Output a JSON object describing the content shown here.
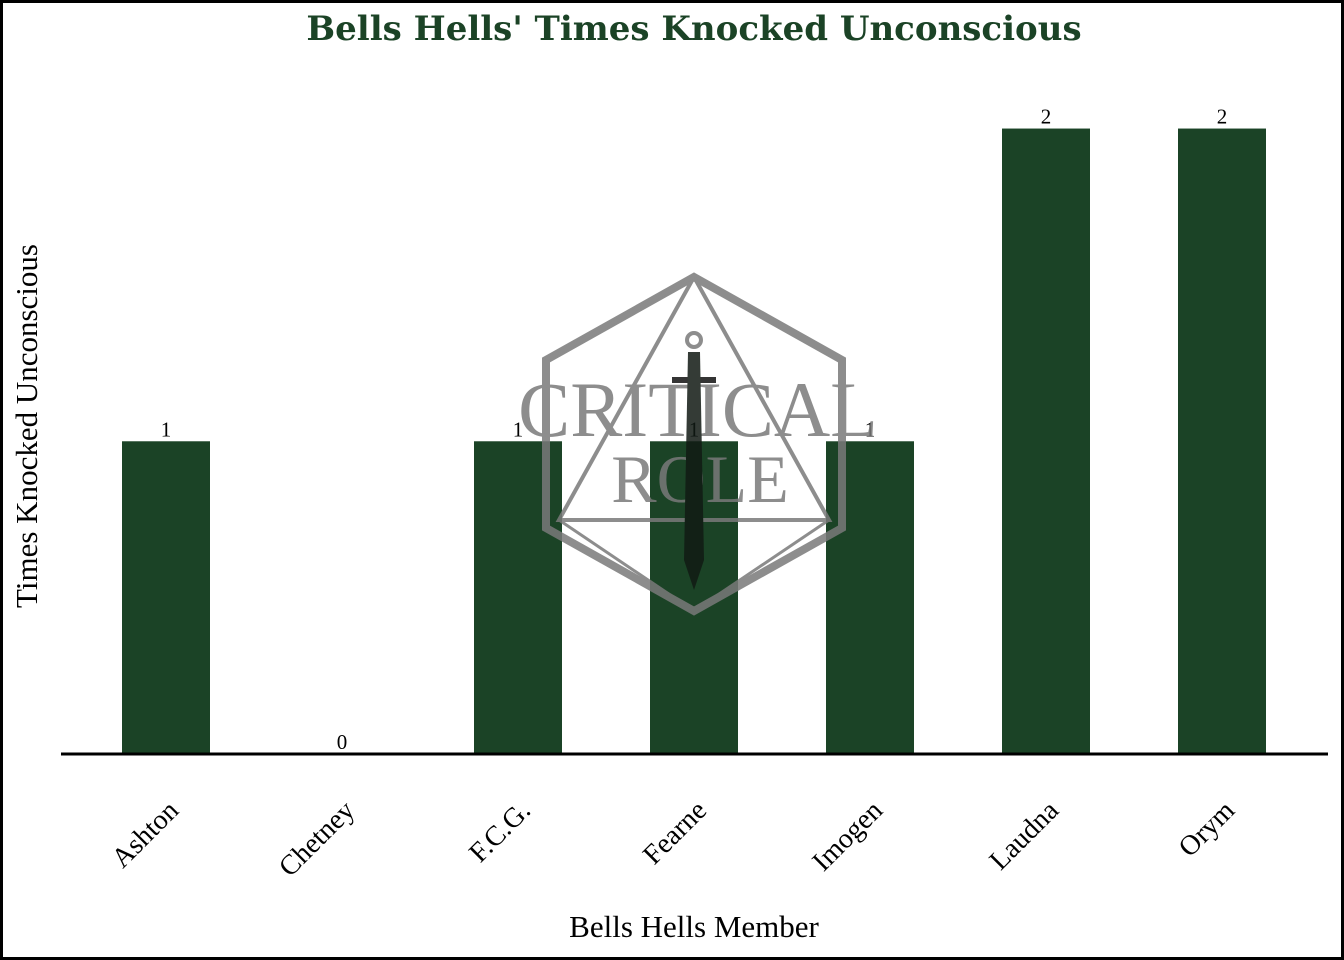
{
  "colors": {
    "bar": "#1b4326",
    "title": "#1b4326",
    "watermark": "#7a7a7a"
  },
  "watermark": {
    "line1": "CRITICAL",
    "line2": "ROLE"
  },
  "chart_data": {
    "type": "bar",
    "title": "Bells Hells' Times Knocked Unconscious",
    "xlabel": "Bells Hells Member",
    "ylabel": "Times Knocked Unconscious",
    "categories": [
      "Ashton",
      "Chetney",
      "F.C.G.",
      "Fearne",
      "Imogen",
      "Laudna",
      "Orym"
    ],
    "values": [
      1,
      0,
      1,
      1,
      1,
      2,
      2
    ],
    "ylim": [
      0,
      2.2
    ],
    "grid": false,
    "legend": "none"
  }
}
